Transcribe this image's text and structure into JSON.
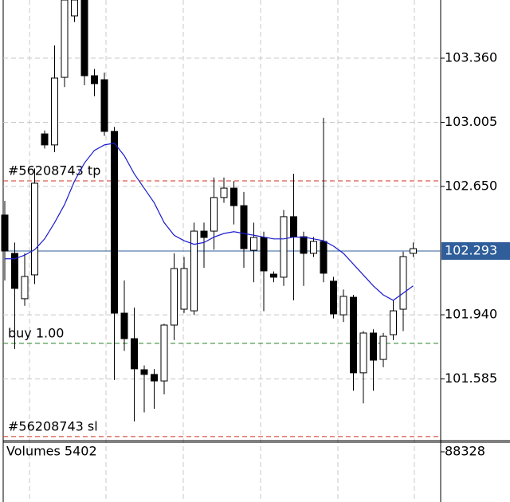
{
  "chart_data": [
    {
      "type": "candlestick",
      "ylim": [
        101.248,
        103.682
      ],
      "yticks": [
        {
          "value": 103.36,
          "label": "103.360"
        },
        103.005,
        {
          "value": 102.65,
          "label": "102.650"
        },
        {
          "value": 101.94,
          "label": "101.940"
        },
        101.585
      ],
      "grid": true,
      "up_color": "#ffffff",
      "down_color": "#000000",
      "open": [
        102.492,
        102.28,
        102.029,
        102.161,
        102.941,
        102.88,
        103.254,
        103.594,
        103.682,
        103.263,
        103.241,
        102.955,
        101.949,
        101.808,
        101.636,
        101.61,
        101.574,
        101.883,
        101.971,
        101.962,
        102.403,
        102.403,
        102.589,
        102.641,
        102.544,
        102.297,
        102.368,
        102.165,
        102.148,
        102.483,
        102.372,
        102.28,
        102.346,
        102.126,
        101.94,
        102.037,
        101.619,
        101.839,
        101.693,
        101.83,
        101.971,
        102.28
      ],
      "high": [
        102.57,
        102.34,
        102.28,
        102.75,
        102.96,
        103.43,
        103.682,
        103.682,
        103.682,
        103.3,
        103.28,
        102.98,
        102.13,
        101.98,
        101.66,
        101.64,
        101.89,
        102.28,
        102.26,
        102.45,
        102.45,
        102.7,
        102.7,
        102.68,
        102.62,
        102.45,
        102.4,
        102.18,
        102.52,
        102.72,
        102.4,
        102.37,
        103.03,
        102.15,
        102.08,
        102.05,
        101.85,
        101.86,
        101.84,
        102.02,
        102.29,
        102.34
      ],
      "low": [
        102.13,
        101.75,
        101.99,
        102.11,
        102.86,
        102.84,
        103.2,
        103.56,
        103.21,
        103.15,
        102.93,
        101.58,
        101.74,
        101.35,
        101.4,
        101.42,
        101.5,
        101.8,
        101.95,
        101.94,
        102.2,
        102.3,
        102.56,
        102.44,
        102.2,
        102.12,
        101.96,
        102.12,
        102.1,
        102.02,
        102.1,
        102.26,
        102.12,
        101.92,
        101.9,
        101.52,
        101.45,
        101.52,
        101.65,
        101.8,
        101.85,
        102.26
      ],
      "close": [
        102.293,
        102.086,
        102.152,
        102.668,
        102.88,
        103.25,
        103.682,
        103.682,
        103.263,
        103.219,
        102.955,
        101.949,
        101.808,
        101.641,
        101.61,
        101.574,
        101.883,
        102.196,
        102.196,
        102.403,
        102.368,
        102.589,
        102.641,
        102.544,
        102.306,
        102.368,
        102.183,
        102.148,
        102.483,
        102.372,
        102.28,
        102.346,
        102.17,
        101.945,
        102.042,
        101.619,
        101.839,
        101.689,
        101.821,
        101.962,
        102.262,
        102.306
      ],
      "ma": {
        "color": "#1a1ad0",
        "values": [
          102.25,
          102.25,
          102.27,
          102.3,
          102.36,
          102.45,
          102.55,
          102.68,
          102.78,
          102.85,
          102.88,
          102.89,
          102.82,
          102.72,
          102.64,
          102.56,
          102.45,
          102.38,
          102.35,
          102.33,
          102.34,
          102.37,
          102.39,
          102.4,
          102.39,
          102.38,
          102.37,
          102.36,
          102.36,
          102.37,
          102.37,
          102.36,
          102.35,
          102.32,
          102.28,
          102.22,
          102.16,
          102.1,
          102.05,
          102.02,
          102.06,
          102.1
        ]
      },
      "levels": [
        {
          "label": "#56208743 tp",
          "value": 102.681,
          "color": "#d03020"
        },
        {
          "label": "buy 1.00",
          "value": 101.782,
          "color": "#208020"
        },
        {
          "label": "#56208743 sl",
          "value": 101.266,
          "color": "#d03020"
        }
      ],
      "current_price": 102.293,
      "current_color": "#2f5e9a"
    },
    {
      "type": "volume",
      "title": "Volumes 5402",
      "yticks": [
        88328
      ]
    }
  ]
}
